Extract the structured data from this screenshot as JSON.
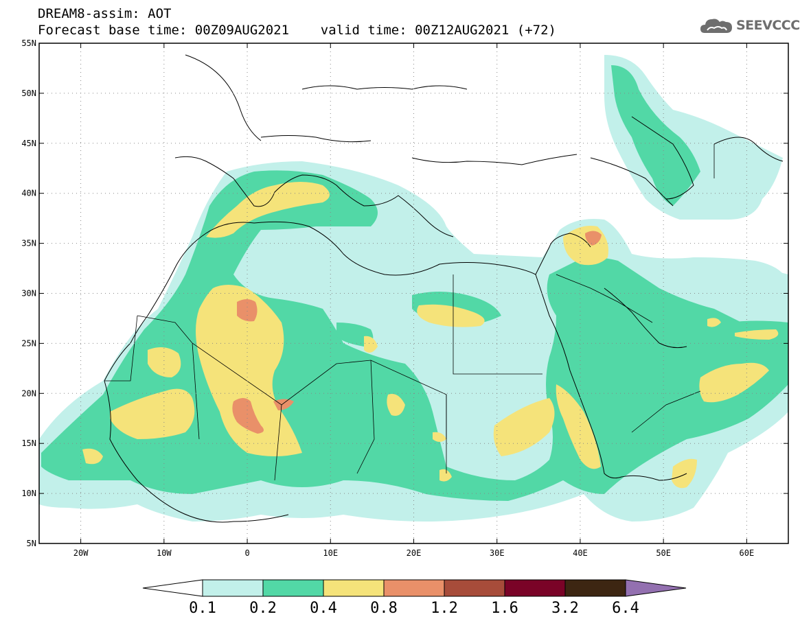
{
  "header": {
    "line1": "DREAM8-assim: AOT",
    "line2": "Forecast base time: 00Z09AUG2021    valid time: 00Z12AUG2021 (+72)"
  },
  "logo": {
    "text": "SEEVCCC",
    "icon": "cloud-icon"
  },
  "map": {
    "lon_range": [
      -25,
      65
    ],
    "lat_range": [
      5,
      55
    ],
    "lat_labels": [
      "5N",
      "10N",
      "15N",
      "20N",
      "25N",
      "30N",
      "35N",
      "40N",
      "45N",
      "50N",
      "55N"
    ],
    "lat_values": [
      5,
      10,
      15,
      20,
      25,
      30,
      35,
      40,
      45,
      50,
      55
    ],
    "lon_labels": [
      "20W",
      "10W",
      "0",
      "10E",
      "20E",
      "30E",
      "40E",
      "50E",
      "60E"
    ],
    "lon_values": [
      -20,
      -10,
      0,
      10,
      20,
      30,
      40,
      50,
      60
    ],
    "grid": "dotted"
  },
  "colorbar": {
    "labels": [
      "0.1",
      "0.2",
      "0.4",
      "0.8",
      "1.2",
      "1.6",
      "3.2",
      "6.4"
    ],
    "colors": [
      "#c2f0ea",
      "#52d8a6",
      "#f5e37a",
      "#e99069",
      "#a74c3a",
      "#7a0327",
      "#3d2612",
      "#9370b0"
    ],
    "under_color": "#ffffff"
  },
  "chart_data": {
    "type": "map",
    "title": "DREAM8-assim: AOT",
    "subtitle": "Forecast base time: 00Z09AUG2021    valid time: 00Z12AUG2021 (+72)",
    "variable": "AOT",
    "levels": [
      0.1,
      0.2,
      0.4,
      0.8,
      1.2,
      1.6,
      3.2,
      6.4
    ],
    "xlim": [
      -25,
      65
    ],
    "ylim": [
      5,
      55
    ]
  }
}
